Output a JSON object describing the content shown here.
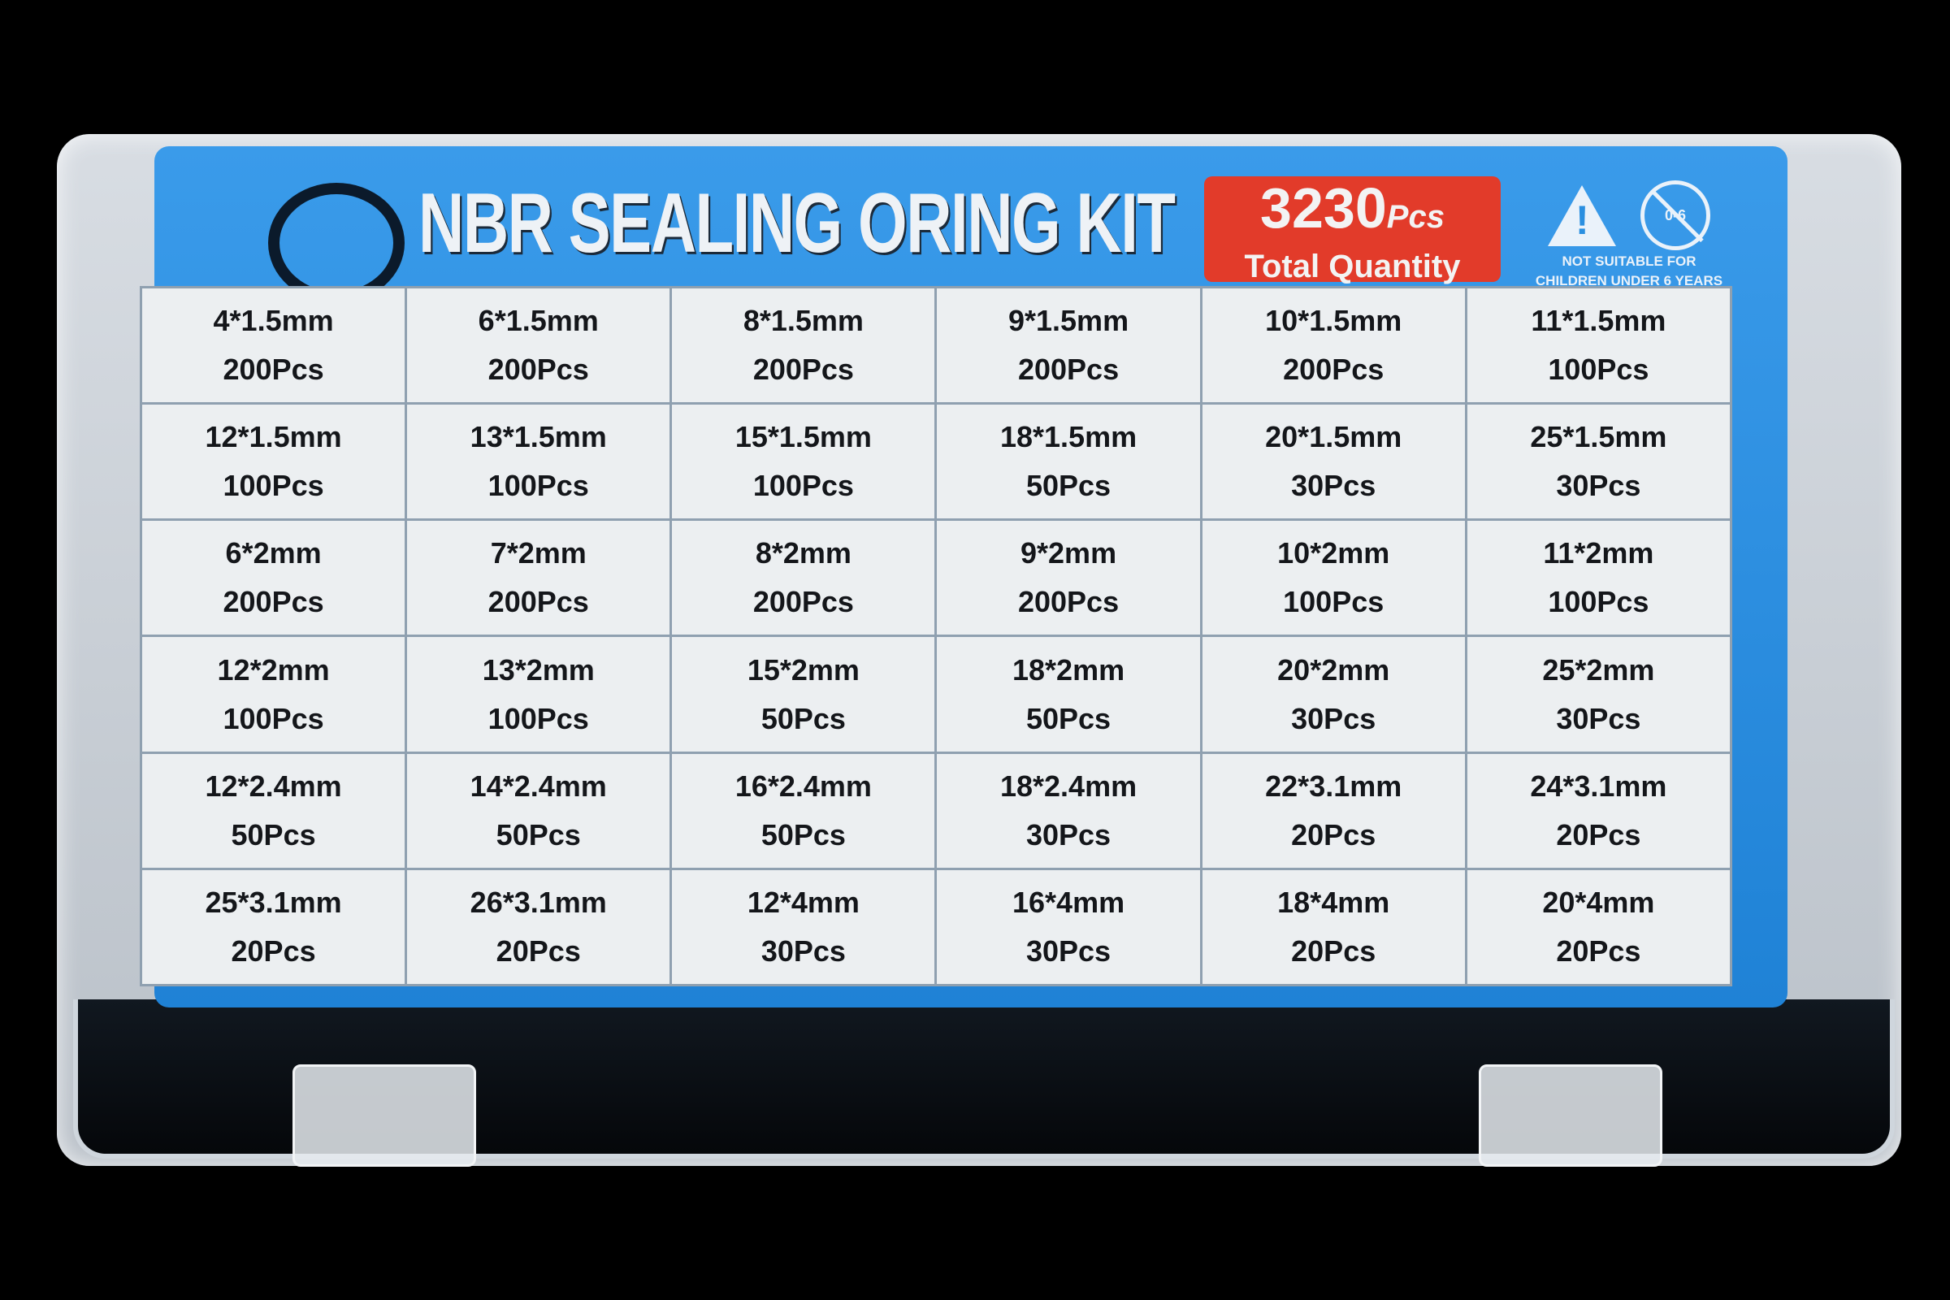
{
  "title": "NBR SEALING ORING KIT",
  "total": {
    "number": "3230",
    "unit": "Pcs",
    "label": "Total Quantity"
  },
  "warning": {
    "line1": "NOT SUITABLE FOR",
    "line2": "CHILDREN UNDER 6 YEARS",
    "age": "0-6"
  },
  "colors": {
    "label_blue": "#2a8fe0",
    "badge_red": "#e23b2a",
    "background": "#000000"
  },
  "rows": [
    [
      {
        "size": "4*1.5mm",
        "qty": "200Pcs"
      },
      {
        "size": "6*1.5mm",
        "qty": "200Pcs"
      },
      {
        "size": "8*1.5mm",
        "qty": "200Pcs"
      },
      {
        "size": "9*1.5mm",
        "qty": "200Pcs"
      },
      {
        "size": "10*1.5mm",
        "qty": "200Pcs"
      },
      {
        "size": "11*1.5mm",
        "qty": "100Pcs"
      }
    ],
    [
      {
        "size": "12*1.5mm",
        "qty": "100Pcs"
      },
      {
        "size": "13*1.5mm",
        "qty": "100Pcs"
      },
      {
        "size": "15*1.5mm",
        "qty": "100Pcs"
      },
      {
        "size": "18*1.5mm",
        "qty": "50Pcs"
      },
      {
        "size": "20*1.5mm",
        "qty": "30Pcs"
      },
      {
        "size": "25*1.5mm",
        "qty": "30Pcs"
      }
    ],
    [
      {
        "size": "6*2mm",
        "qty": "200Pcs"
      },
      {
        "size": "7*2mm",
        "qty": "200Pcs"
      },
      {
        "size": "8*2mm",
        "qty": "200Pcs"
      },
      {
        "size": "9*2mm",
        "qty": "200Pcs"
      },
      {
        "size": "10*2mm",
        "qty": "100Pcs"
      },
      {
        "size": "11*2mm",
        "qty": "100Pcs"
      }
    ],
    [
      {
        "size": "12*2mm",
        "qty": "100Pcs"
      },
      {
        "size": "13*2mm",
        "qty": "100Pcs"
      },
      {
        "size": "15*2mm",
        "qty": "50Pcs"
      },
      {
        "size": "18*2mm",
        "qty": "50Pcs"
      },
      {
        "size": "20*2mm",
        "qty": "30Pcs"
      },
      {
        "size": "25*2mm",
        "qty": "30Pcs"
      }
    ],
    [
      {
        "size": "12*2.4mm",
        "qty": "50Pcs"
      },
      {
        "size": "14*2.4mm",
        "qty": "50Pcs"
      },
      {
        "size": "16*2.4mm",
        "qty": "50Pcs"
      },
      {
        "size": "18*2.4mm",
        "qty": "30Pcs"
      },
      {
        "size": "22*3.1mm",
        "qty": "20Pcs"
      },
      {
        "size": "24*3.1mm",
        "qty": "20Pcs"
      }
    ],
    [
      {
        "size": "25*3.1mm",
        "qty": "20Pcs"
      },
      {
        "size": "26*3.1mm",
        "qty": "20Pcs"
      },
      {
        "size": "12*4mm",
        "qty": "30Pcs"
      },
      {
        "size": "16*4mm",
        "qty": "30Pcs"
      },
      {
        "size": "18*4mm",
        "qty": "20Pcs"
      },
      {
        "size": "20*4mm",
        "qty": "20Pcs"
      }
    ]
  ]
}
